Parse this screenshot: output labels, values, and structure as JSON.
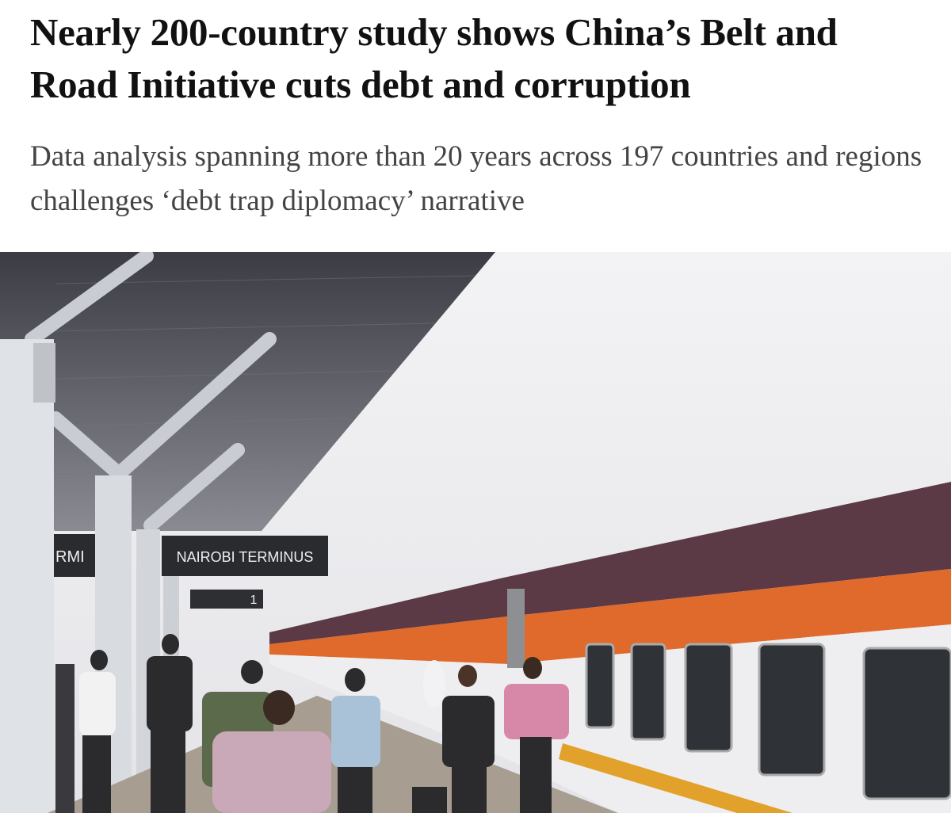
{
  "article": {
    "headline": "Nearly 200-country study shows China’s Belt and Road Initiative cuts debt and corruption",
    "subheadline": "Data analysis spanning more than 20 years across 197 countries and regions challenges ‘debt trap diplomacy’ narrative",
    "photo": {
      "signs": [
        "NAIROBI TERMINUS",
        "RMI",
        "1"
      ]
    }
  }
}
